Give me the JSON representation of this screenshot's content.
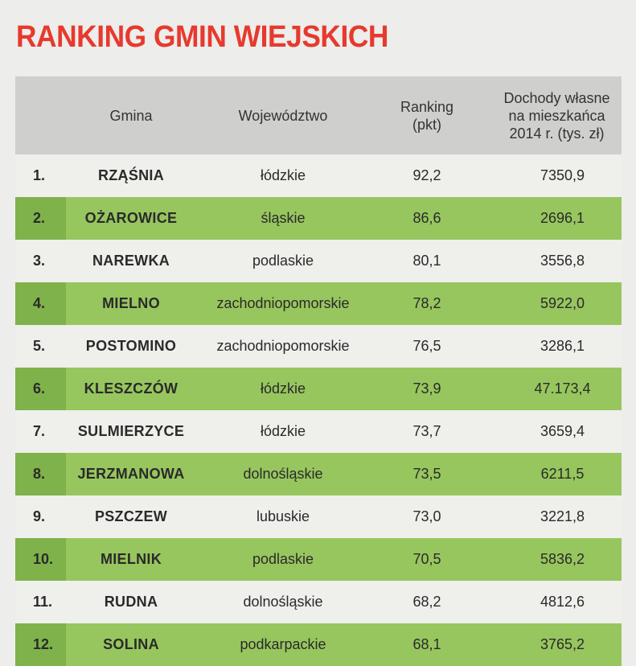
{
  "title": "RANKING GMIN WIEJSKICH",
  "headers": {
    "gmina": "Gmina",
    "wojewodztwo": "Województwo",
    "ranking_line1": "Ranking",
    "ranking_line2": "(pkt)",
    "income_line1": "Dochody własne",
    "income_line2": "na mieszkańca",
    "income_line3": "2014 r. (tys. zł)"
  },
  "rows": [
    {
      "rank": "1.",
      "gmina": "RZĄŚNIA",
      "wojewodztwo": "łódzkie",
      "points": "92,2",
      "income": "7350,9"
    },
    {
      "rank": "2.",
      "gmina": "OŻAROWICE",
      "wojewodztwo": "śląskie",
      "points": "86,6",
      "income": "2696,1"
    },
    {
      "rank": "3.",
      "gmina": "NAREWKA",
      "wojewodztwo": "podlaskie",
      "points": "80,1",
      "income": "3556,8"
    },
    {
      "rank": "4.",
      "gmina": "MIELNO",
      "wojewodztwo": "zachodniopomorskie",
      "points": "78,2",
      "income": "5922,0"
    },
    {
      "rank": "5.",
      "gmina": "POSTOMINO",
      "wojewodztwo": "zachodniopomorskie",
      "points": "76,5",
      "income": "3286,1"
    },
    {
      "rank": "6.",
      "gmina": "KLESZCZÓW",
      "wojewodztwo": "łódzkie",
      "points": "73,9",
      "income": "47.173,4"
    },
    {
      "rank": "7.",
      "gmina": "SULMIERZYCE",
      "wojewodztwo": "łódzkie",
      "points": "73,7",
      "income": "3659,4"
    },
    {
      "rank": "8.",
      "gmina": "JERZMANOWA",
      "wojewodztwo": "dolnośląskie",
      "points": "73,5",
      "income": "6211,5"
    },
    {
      "rank": "9.",
      "gmina": "PSZCZEW",
      "wojewodztwo": "lubuskie",
      "points": "73,0",
      "income": "3221,8"
    },
    {
      "rank": "10.",
      "gmina": "MIELNIK",
      "wojewodztwo": "podlaskie",
      "points": "70,5",
      "income": "5836,2"
    },
    {
      "rank": "11.",
      "gmina": "RUDNA",
      "wojewodztwo": "dolnośląskie",
      "points": "68,2",
      "income": "4812,6"
    },
    {
      "rank": "12.",
      "gmina": "SOLINA",
      "wojewodztwo": "podkarpackie",
      "points": "68,1",
      "income": "3765,2"
    }
  ],
  "colors": {
    "title": "#e63a2e",
    "header_bg": "#cfcfcd",
    "row_green": "#97c65e",
    "row_green_rank": "#7fb24a",
    "row_plain": "#efefec"
  }
}
